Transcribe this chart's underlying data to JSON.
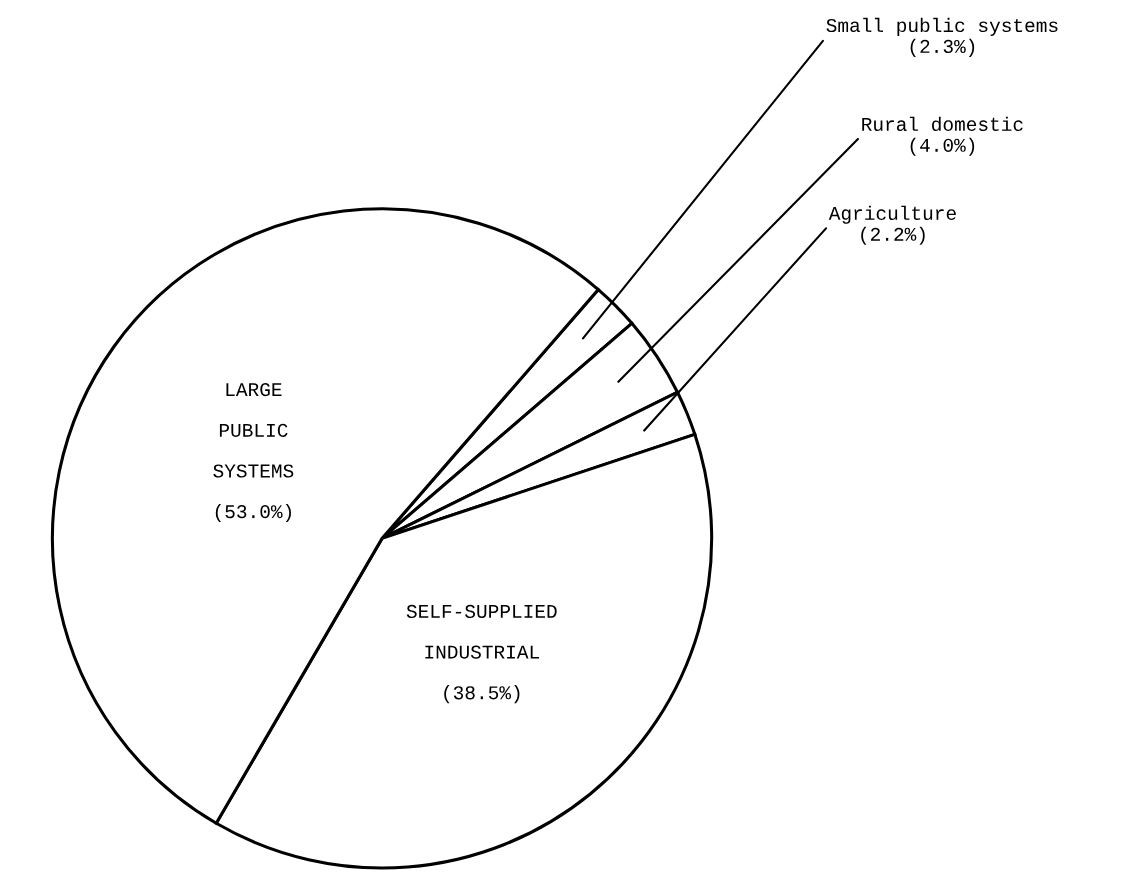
{
  "chart_data": {
    "type": "pie",
    "categories": [
      "Small public systems",
      "Rural domestic",
      "Agriculture",
      "SELF-SUPPLIED\nINDUSTRIAL",
      "LARGE\nPUBLIC\nSYSTEMS"
    ],
    "values": [
      2.3,
      4.0,
      2.2,
      38.5,
      53.0
    ],
    "value_labels": [
      "(2.3%)",
      "(4.0%)",
      "(2.2%)",
      "(38.5%)",
      "(53.0%)"
    ],
    "colors": [
      "#ffffff",
      "#ffffff",
      "#ffffff",
      "#ffffff",
      "#ffffff"
    ]
  }
}
